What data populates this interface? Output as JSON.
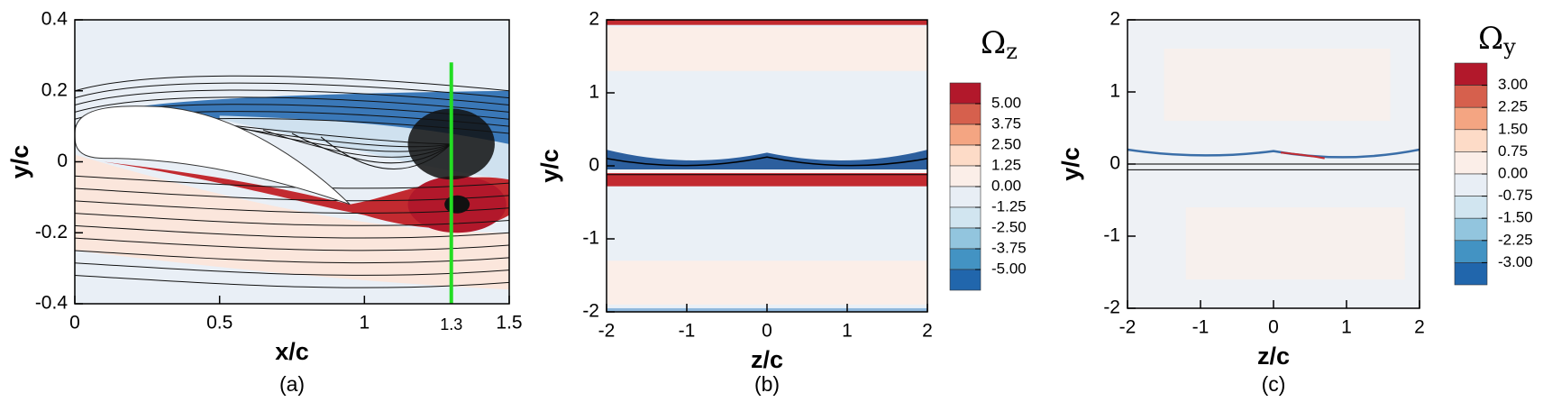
{
  "chart_data": [
    {
      "type": "contour",
      "xlabel": "x/c",
      "ylabel": "y/c",
      "caption": "(a)",
      "xlim": [
        0,
        1.5
      ],
      "ylim": [
        -0.4,
        0.4
      ],
      "xticks": [
        0,
        0.5,
        1,
        1.5
      ],
      "yticks": [
        -0.4,
        -0.2,
        0,
        0.2,
        0.4
      ],
      "marker_x": 1.3,
      "marker_color": "#22dd22"
    },
    {
      "type": "contour",
      "xlabel": "z/c",
      "ylabel": "y/c",
      "caption": "(b)",
      "xlim": [
        -2,
        2
      ],
      "ylim": [
        -2,
        2
      ],
      "xticks": [
        -2,
        -1,
        0,
        1,
        2
      ],
      "yticks": [
        -2,
        -1,
        0,
        1,
        2
      ],
      "colorbar": {
        "symbol": "Ω",
        "subscript": "z",
        "colors": [
          "#b2182b",
          "#d6604d",
          "#f4a582",
          "#fddbc7",
          "#fbeee8",
          "#e8eef5",
          "#d1e5f0",
          "#92c5de",
          "#4393c3",
          "#2166ac"
        ],
        "levels": [
          {
            "value": 5,
            "label": "5.00"
          },
          {
            "value": 3.75,
            "label": "3.75"
          },
          {
            "value": 2.5,
            "label": "2.50"
          },
          {
            "value": 1.25,
            "label": "1.25"
          },
          {
            "value": 0,
            "label": "0.00"
          },
          {
            "value": -1.25,
            "label": "-1.25"
          },
          {
            "value": -2.5,
            "label": "-2.50"
          },
          {
            "value": -3.75,
            "label": "-3.75"
          },
          {
            "value": -5,
            "label": "-5.00"
          }
        ]
      }
    },
    {
      "type": "contour",
      "xlabel": "z/c",
      "ylabel": "y/c",
      "caption": "(c)",
      "xlim": [
        -2,
        2
      ],
      "ylim": [
        -2,
        2
      ],
      "xticks": [
        -2,
        -1,
        0,
        1,
        2
      ],
      "yticks": [
        -2,
        -1,
        0,
        1,
        2
      ],
      "colorbar": {
        "symbol": "Ω",
        "subscript": "y",
        "colors": [
          "#b2182b",
          "#d6604d",
          "#f4a582",
          "#fddbc7",
          "#fbeee8",
          "#e8eef5",
          "#d1e5f0",
          "#92c5de",
          "#4393c3",
          "#2166ac"
        ],
        "levels": [
          {
            "value": 3,
            "label": "3.00"
          },
          {
            "value": 2.25,
            "label": "2.25"
          },
          {
            "value": 1.5,
            "label": "1.50"
          },
          {
            "value": 0.75,
            "label": "0.75"
          },
          {
            "value": 0,
            "label": "0.00"
          },
          {
            "value": -0.75,
            "label": "-0.75"
          },
          {
            "value": -1.5,
            "label": "-1.50"
          },
          {
            "value": -2.25,
            "label": "-2.25"
          },
          {
            "value": -3,
            "label": "-3.00"
          }
        ]
      }
    }
  ]
}
